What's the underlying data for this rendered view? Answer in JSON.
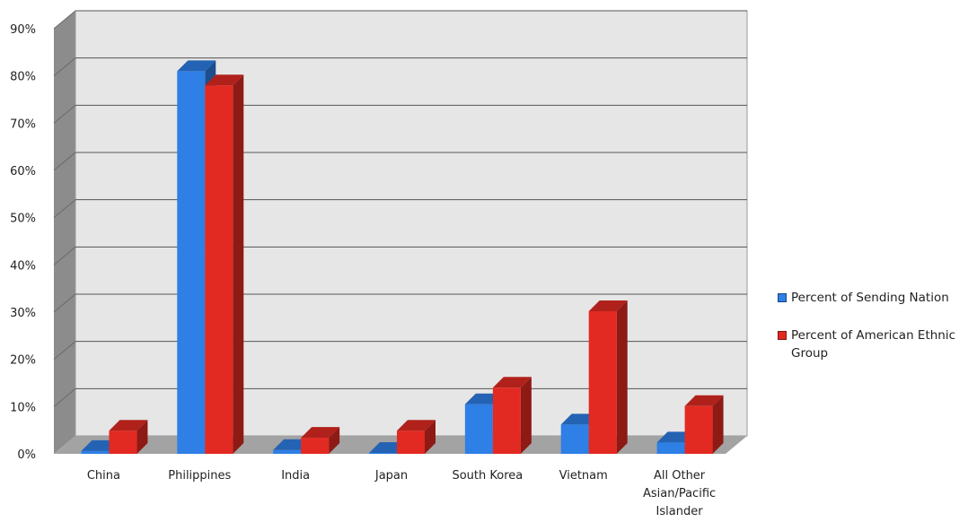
{
  "chart_data": {
    "type": "bar",
    "title": "",
    "xlabel": "",
    "ylabel": "",
    "ylim": [
      0,
      90
    ],
    "yticks": [
      "0%",
      "10%",
      "20%",
      "30%",
      "40%",
      "50%",
      "60%",
      "70%",
      "80%",
      "90%"
    ],
    "categories": [
      [
        "China"
      ],
      [
        "Philippines"
      ],
      [
        "India"
      ],
      [
        "Japan"
      ],
      [
        "South Korea"
      ],
      [
        "Vietnam"
      ],
      [
        "All Other",
        "Asian/Pacific",
        "Islander"
      ]
    ],
    "series": [
      {
        "name": "Percent of Sending Nation",
        "color": "#2e7fe6",
        "values": [
          0.6,
          81,
          0.8,
          0.2,
          10.5,
          6.2,
          2.4
        ]
      },
      {
        "name": "Percent of American Ethnic Group",
        "color": "#e32a22",
        "values": [
          4.9,
          78,
          3.4,
          4.9,
          14,
          30.2,
          10.1
        ]
      }
    ],
    "grid": true,
    "legend_position": "right",
    "style": "3d-clustered-column"
  }
}
